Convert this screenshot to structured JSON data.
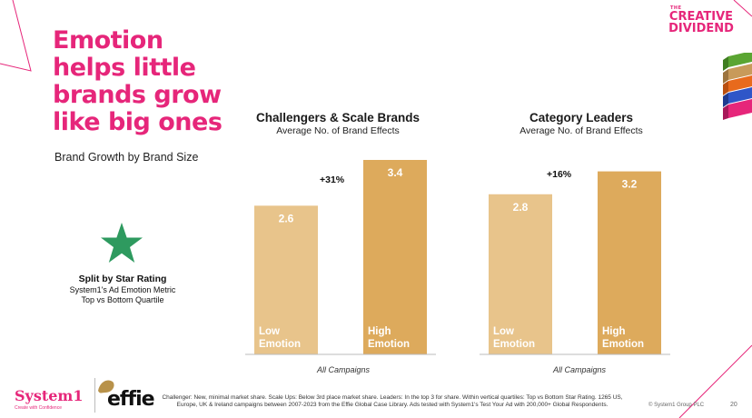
{
  "headline": [
    "Emotion",
    "helps little",
    "brands grow",
    "like big ones"
  ],
  "subhead": "Brand Growth by Brand Size",
  "star_panel": {
    "title": "Split by Star Rating",
    "line1": "System1's Ad Emotion Metric",
    "line2": "Top vs Bottom Quartile"
  },
  "colors": {
    "accent": "#e6267a",
    "low_bar": "#e8c48b",
    "high_bar": "#ddaa5c",
    "star": "#2e9a5f"
  },
  "chart_data": [
    {
      "type": "bar",
      "title": "Challengers & Scale Brands",
      "subtitle": "Average No. of Brand Effects",
      "categories": [
        "Low Emotion",
        "High Emotion"
      ],
      "values": [
        2.6,
        3.4
      ],
      "value_labels": [
        "2.6",
        "3.4"
      ],
      "uplift": "+31%",
      "xlabel": "All Campaigns",
      "ylim": [
        0,
        3.4
      ]
    },
    {
      "type": "bar",
      "title": "Category Leaders",
      "subtitle": "Average No. of Brand Effects",
      "categories": [
        "Low Emotion",
        "High Emotion"
      ],
      "values": [
        2.8,
        3.2
      ],
      "value_labels": [
        "2.8",
        "3.2"
      ],
      "uplift": "+16%",
      "xlabel": "All Campaigns",
      "ylim": [
        0,
        3.4
      ]
    }
  ],
  "logo": {
    "the": "THE",
    "word1": "CREATIVE",
    "word2": "DIVIDEND"
  },
  "footer": {
    "system1": "System1",
    "system1_tagline": "Create with Confidence",
    "effie": "effie",
    "footnote": "Challenger: New, minimal market share. Scale Ups: Below 3rd place market share. Leaders: In the top 3 for share. Within vertical quartiles: Top vs Bottom Star Rating. 1265 US, Europe, UK & Ireland campaigns between 2007-2023 from the Effie Global Case Library. Ads tested with System1's Test Your Ad with 200,000+ Global Respondents.",
    "copyright": "© System1 Group PLC",
    "page": "20"
  }
}
